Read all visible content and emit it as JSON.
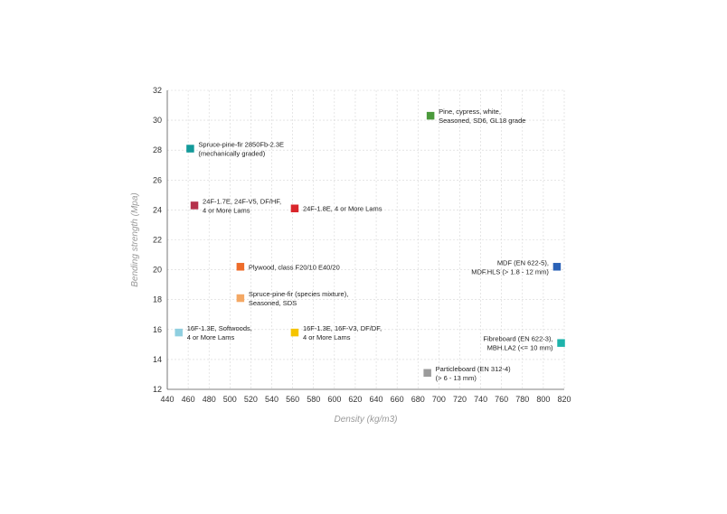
{
  "chart_data": {
    "type": "scatter",
    "xlabel": "Density (kg/m3)",
    "ylabel": "Bending strength (Mpa)",
    "xlim": [
      440,
      820
    ],
    "ylim": [
      12,
      32
    ],
    "x_ticks": [
      440,
      460,
      480,
      500,
      520,
      540,
      560,
      580,
      600,
      620,
      640,
      660,
      680,
      700,
      720,
      740,
      760,
      780,
      800,
      820
    ],
    "y_ticks": [
      12,
      14,
      16,
      18,
      20,
      22,
      24,
      26,
      28,
      30,
      32
    ],
    "grid": true,
    "points": [
      {
        "x": 692,
        "y": 30.3,
        "color": "#4b9a3c",
        "label_side": "right",
        "label": [
          "Pine, cypress, white,",
          "Seasoned, SD6, GL18 grade"
        ]
      },
      {
        "x": 462,
        "y": 28.1,
        "color": "#139a9a",
        "label_side": "right",
        "label": [
          "Spruce-pine-fir 2850Fb-2.3E",
          "(mechanically graded)"
        ]
      },
      {
        "x": 466,
        "y": 24.3,
        "color": "#b5324b",
        "label_side": "right",
        "label": [
          "24F-1.7E, 24F-V5, DF/HF,",
          "4 or More Lams"
        ]
      },
      {
        "x": 562,
        "y": 24.1,
        "color": "#d9262b",
        "label_side": "right",
        "label": [
          "24F-1.8E, 4 or More Lams"
        ]
      },
      {
        "x": 510,
        "y": 20.2,
        "color": "#ee6c2a",
        "label_side": "right",
        "label": [
          "Plywood, class F20/10 E40/20"
        ]
      },
      {
        "x": 813,
        "y": 20.2,
        "color": "#2b62b7",
        "label_side": "left",
        "label": [
          "MDF (EN 622-5),",
          "MDF.HLS (> 1.8 - 12 mm)"
        ]
      },
      {
        "x": 510,
        "y": 18.1,
        "color": "#f4a864",
        "label_side": "right",
        "label": [
          "Spruce-pine-fir (species mixture),",
          "Seasoned, SDS"
        ]
      },
      {
        "x": 451,
        "y": 15.8,
        "color": "#8fcfe0",
        "label_side": "right",
        "label": [
          "16F-1.3E, Softwoods,",
          "4 or More Lams"
        ]
      },
      {
        "x": 562,
        "y": 15.8,
        "color": "#f5c400",
        "label_side": "right",
        "label": [
          "16F-1.3E, 16F-V3, DF/DF,",
          "4 or More Lams"
        ]
      },
      {
        "x": 817,
        "y": 15.1,
        "color": "#1eb3ab",
        "label_side": "left",
        "label": [
          "Fibreboard (EN 622-3),",
          "MBH.LA2 (<= 10 mm)"
        ]
      },
      {
        "x": 689,
        "y": 13.1,
        "color": "#9b9b9b",
        "label_side": "right",
        "label": [
          "Particleboard (EN 312-4)",
          "(> 6 - 13 mm)"
        ]
      }
    ]
  }
}
